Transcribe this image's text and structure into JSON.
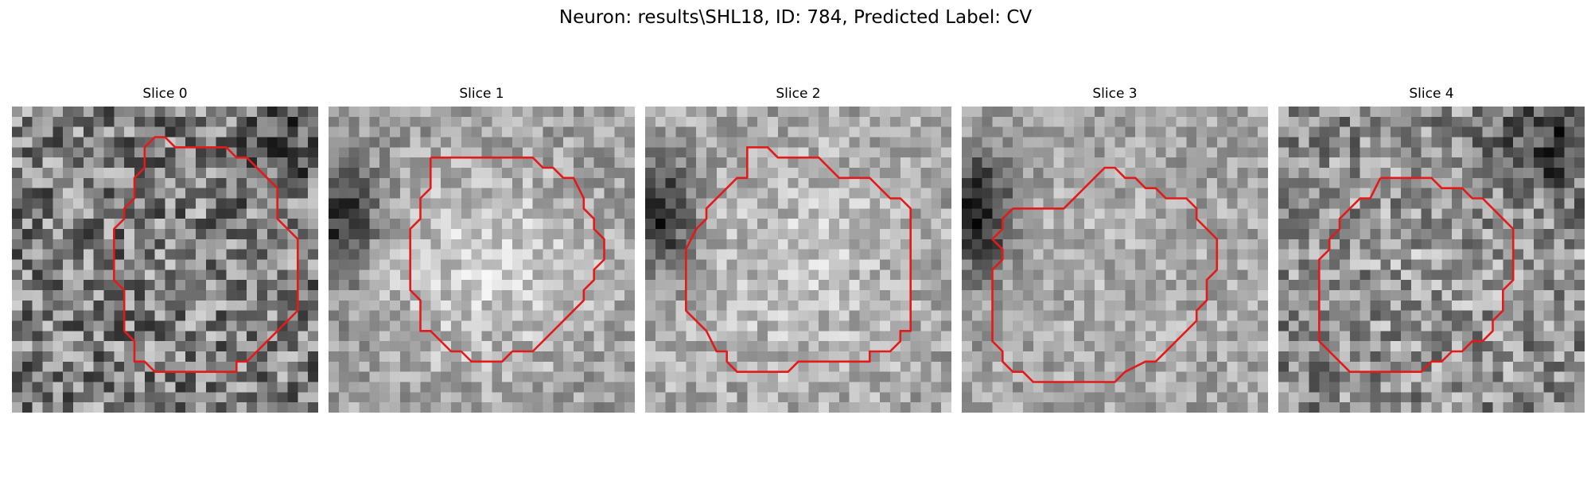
{
  "figure": {
    "title": "Neuron: results\\SHL18, ID: 784, Predicted Label: CV"
  },
  "grid_size": 30,
  "contour_color": "#e31a1a",
  "slices": [
    {
      "title": "Slice 0",
      "field": {
        "base": 0.5,
        "center_boost": 0.0,
        "dark_left": 0.0,
        "dark_top_right": 0.15,
        "noise": 0.32
      },
      "contour": [
        [
          13,
          4
        ],
        [
          14,
          3
        ],
        [
          15,
          3
        ],
        [
          16,
          4
        ],
        [
          21,
          4
        ],
        [
          22,
          5
        ],
        [
          23,
          5
        ],
        [
          26,
          8
        ],
        [
          26,
          11
        ],
        [
          27,
          12
        ],
        [
          28,
          13
        ],
        [
          28,
          20
        ],
        [
          23,
          25
        ],
        [
          22,
          25
        ],
        [
          22,
          26
        ],
        [
          14,
          26
        ],
        [
          13,
          25
        ],
        [
          12,
          25
        ],
        [
          12,
          23
        ],
        [
          11,
          22
        ],
        [
          11,
          18
        ],
        [
          10,
          17
        ],
        [
          10,
          12
        ],
        [
          11,
          11
        ],
        [
          11,
          10
        ],
        [
          12,
          9
        ],
        [
          12,
          7
        ],
        [
          13,
          6
        ]
      ]
    },
    {
      "title": "Slice 1",
      "field": {
        "base": 0.62,
        "center_boost": 0.22,
        "dark_left": 0.45,
        "dark_top_right": 0.0,
        "noise": 0.18
      },
      "contour": [
        [
          10,
          5
        ],
        [
          20,
          5
        ],
        [
          21,
          6
        ],
        [
          22,
          6
        ],
        [
          23,
          7
        ],
        [
          24,
          7
        ],
        [
          25,
          9
        ],
        [
          25,
          10
        ],
        [
          26,
          11
        ],
        [
          26,
          12
        ],
        [
          27,
          13
        ],
        [
          27,
          15
        ],
        [
          26,
          16
        ],
        [
          26,
          17
        ],
        [
          25,
          18
        ],
        [
          25,
          19
        ],
        [
          24,
          20
        ],
        [
          20,
          24
        ],
        [
          18,
          24
        ],
        [
          17,
          25
        ],
        [
          14,
          25
        ],
        [
          13,
          24
        ],
        [
          12,
          24
        ],
        [
          10,
          22
        ],
        [
          9,
          22
        ],
        [
          9,
          19
        ],
        [
          8,
          18
        ],
        [
          8,
          12
        ],
        [
          9,
          11
        ],
        [
          9,
          9
        ],
        [
          10,
          8
        ]
      ]
    },
    {
      "title": "Slice 2",
      "field": {
        "base": 0.66,
        "center_boost": 0.12,
        "dark_left": 0.5,
        "dark_top_right": 0.0,
        "noise": 0.18
      },
      "contour": [
        [
          10,
          5
        ],
        [
          10,
          4
        ],
        [
          12,
          4
        ],
        [
          13,
          5
        ],
        [
          17,
          5
        ],
        [
          19,
          7
        ],
        [
          22,
          7
        ],
        [
          24,
          9
        ],
        [
          25,
          9
        ],
        [
          26,
          10
        ],
        [
          26,
          22
        ],
        [
          25,
          22
        ],
        [
          25,
          23
        ],
        [
          24,
          24
        ],
        [
          22,
          24
        ],
        [
          22,
          25
        ],
        [
          15,
          25
        ],
        [
          14,
          26
        ],
        [
          9,
          26
        ],
        [
          8,
          25
        ],
        [
          8,
          24
        ],
        [
          7,
          24
        ],
        [
          6,
          22
        ],
        [
          4,
          20
        ],
        [
          4,
          14
        ],
        [
          5,
          12
        ],
        [
          6,
          11
        ],
        [
          6,
          10
        ],
        [
          7,
          9
        ],
        [
          9,
          7
        ],
        [
          10,
          7
        ]
      ]
    },
    {
      "title": "Slice 3",
      "field": {
        "base": 0.64,
        "center_boost": 0.05,
        "dark_left": 0.55,
        "dark_top_right": 0.0,
        "noise": 0.17
      },
      "contour": [
        [
          5,
          10
        ],
        [
          10,
          10
        ],
        [
          13,
          7
        ],
        [
          14,
          6
        ],
        [
          15,
          6
        ],
        [
          16,
          7
        ],
        [
          17,
          7
        ],
        [
          18,
          8
        ],
        [
          19,
          8
        ],
        [
          20,
          9
        ],
        [
          22,
          9
        ],
        [
          23,
          10
        ],
        [
          23,
          11
        ],
        [
          24,
          12
        ],
        [
          25,
          13
        ],
        [
          25,
          16
        ],
        [
          24,
          17
        ],
        [
          24,
          19
        ],
        [
          23,
          20
        ],
        [
          23,
          21
        ],
        [
          19,
          25
        ],
        [
          18,
          25
        ],
        [
          16,
          26
        ],
        [
          15,
          27
        ],
        [
          7,
          27
        ],
        [
          6,
          26
        ],
        [
          5,
          26
        ],
        [
          4,
          25
        ],
        [
          4,
          24
        ],
        [
          3,
          23
        ],
        [
          3,
          16
        ],
        [
          4,
          15
        ],
        [
          4,
          14
        ],
        [
          3,
          13
        ],
        [
          4,
          12
        ],
        [
          4,
          11
        ]
      ]
    },
    {
      "title": "Slice 4",
      "field": {
        "base": 0.55,
        "center_boost": 0.08,
        "dark_left": 0.0,
        "dark_top_right": 0.3,
        "noise": 0.27
      },
      "contour": [
        [
          10,
          7
        ],
        [
          15,
          7
        ],
        [
          16,
          8
        ],
        [
          18,
          8
        ],
        [
          19,
          9
        ],
        [
          20,
          9
        ],
        [
          21,
          10
        ],
        [
          22,
          11
        ],
        [
          23,
          12
        ],
        [
          23,
          17
        ],
        [
          22,
          18
        ],
        [
          22,
          20
        ],
        [
          21,
          21
        ],
        [
          21,
          22
        ],
        [
          20,
          23
        ],
        [
          19,
          23
        ],
        [
          18,
          24
        ],
        [
          17,
          24
        ],
        [
          16,
          25
        ],
        [
          15,
          25
        ],
        [
          14,
          26
        ],
        [
          7,
          26
        ],
        [
          4,
          23
        ],
        [
          4,
          15
        ],
        [
          5,
          14
        ],
        [
          5,
          13
        ],
        [
          6,
          12
        ],
        [
          6,
          11
        ],
        [
          8,
          9
        ],
        [
          9,
          9
        ]
      ]
    }
  ]
}
